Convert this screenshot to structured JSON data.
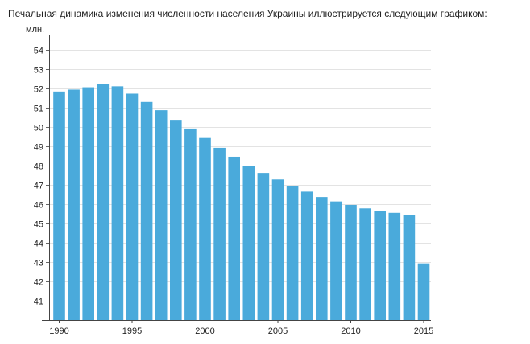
{
  "caption": "Печальная динамика изменения численности населения Украины иллюстрируется следующим графиком:",
  "chart_data": {
    "type": "bar",
    "title": "",
    "xlabel": "",
    "ylabel": "млн.",
    "ylim": [
      40,
      54
    ],
    "yticks": [
      41,
      42,
      43,
      44,
      45,
      46,
      47,
      48,
      49,
      50,
      51,
      52,
      53,
      54
    ],
    "xtick_labels": [
      "1990",
      "1995",
      "2000",
      "2005",
      "2010",
      "2015"
    ],
    "grid": true,
    "legend": "none",
    "bar_color": "#4aaadb",
    "categories": [
      "1990",
      "1991",
      "1992",
      "1993",
      "1994",
      "1995",
      "1996",
      "1997",
      "1998",
      "1999",
      "2000",
      "2001",
      "2002",
      "2003",
      "2004",
      "2005",
      "2006",
      "2007",
      "2008",
      "2009",
      "2010",
      "2011",
      "2012",
      "2013",
      "2014",
      "2015"
    ],
    "values": [
      51.84,
      51.94,
      52.06,
      52.24,
      52.11,
      51.73,
      51.3,
      50.87,
      50.37,
      49.92,
      49.43,
      48.92,
      48.46,
      48.0,
      47.62,
      47.28,
      46.93,
      46.65,
      46.37,
      46.14,
      45.96,
      45.78,
      45.63,
      45.55,
      45.43,
      42.93
    ]
  }
}
